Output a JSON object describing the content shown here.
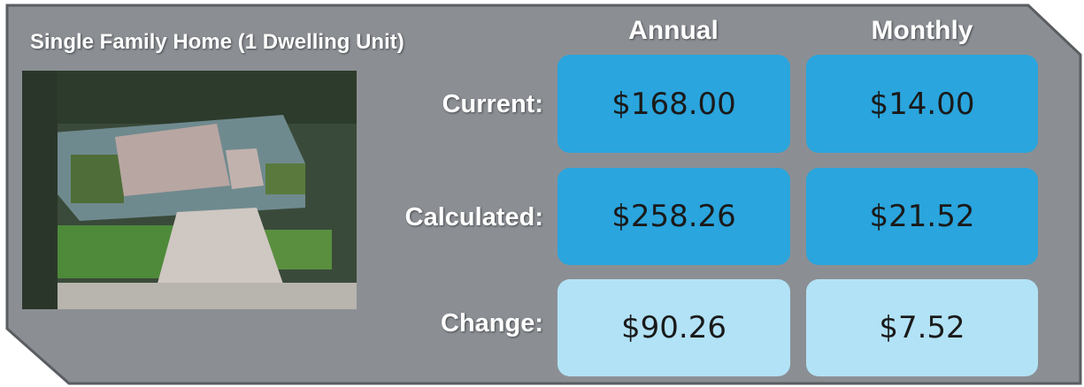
{
  "header": {
    "title": "Single Family Home (1 Dwelling Unit)",
    "columns": [
      "Annual",
      "Monthly"
    ]
  },
  "table": {
    "rows": [
      {
        "label": "Current:",
        "annual": "$168.00",
        "monthly": "$14.00"
      },
      {
        "label": "Calculated:",
        "annual": "$258.26",
        "monthly": "$21.52"
      },
      {
        "label": "Change:",
        "annual": "$90.26",
        "monthly": "$7.52"
      }
    ]
  }
}
